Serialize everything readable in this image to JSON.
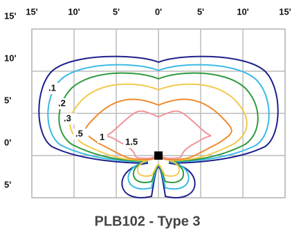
{
  "chart_data": {
    "type": "isoline",
    "title": "PLB102 - Type 3",
    "xlim": [
      -15,
      15
    ],
    "ylim": [
      -5,
      15
    ],
    "xticks": [
      {
        "value": -15,
        "label": "15'"
      },
      {
        "value": -10,
        "label": "10'"
      },
      {
        "value": -5,
        "label": "5'"
      },
      {
        "value": 0,
        "label": "0'"
      },
      {
        "value": 5,
        "label": "5'"
      },
      {
        "value": 10,
        "label": "10'"
      },
      {
        "value": 15,
        "label": "15'"
      }
    ],
    "yticks": [
      {
        "value": 15,
        "label": "15'"
      },
      {
        "value": 10,
        "label": "10'"
      },
      {
        "value": 5,
        "label": "5'"
      },
      {
        "value": 0,
        "label": "0'"
      },
      {
        "value": -5,
        "label": "5'"
      }
    ],
    "grid": true,
    "series": [
      {
        "name": ".1",
        "color": "#1c1f8a"
      },
      {
        "name": ".2",
        "color": "#3cb9e6"
      },
      {
        "name": ".3",
        "color": "#2e9a3c"
      },
      {
        "name": ".5",
        "color": "#f2c94c"
      },
      {
        "name": "1",
        "color": "#ee8a2c"
      },
      {
        "name": "1.5",
        "color": "#f0949a"
      }
    ]
  }
}
